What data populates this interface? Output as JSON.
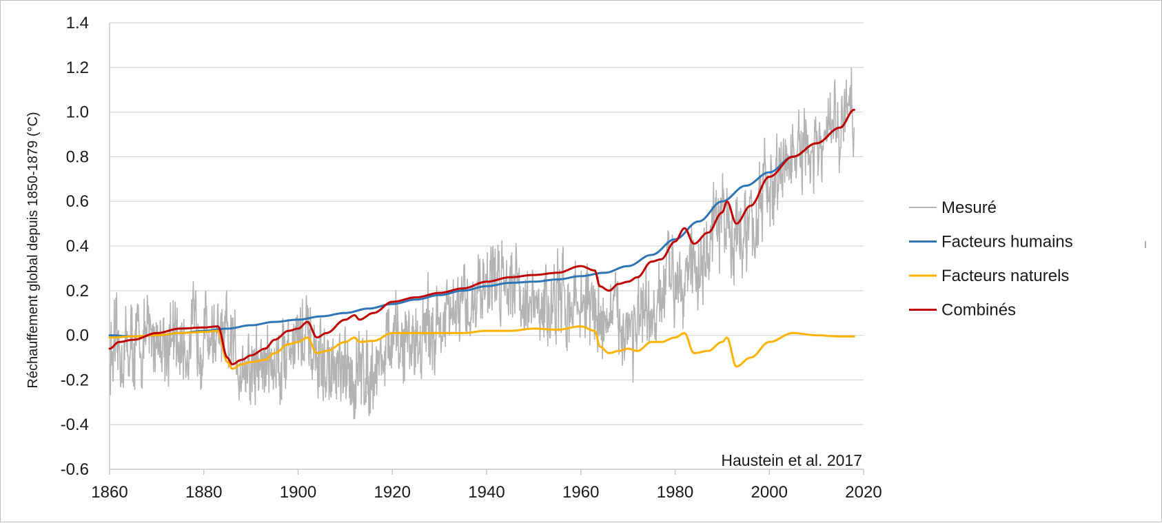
{
  "chart_data": {
    "type": "line",
    "ylabel": "Réchauffement  global depuis 1850-1879 (°C)",
    "xlabel": "",
    "annotation": "Haustein et al. 2017",
    "xlim": [
      1860,
      2020
    ],
    "ylim": [
      -0.6,
      1.4
    ],
    "x_ticks": [
      1860,
      1880,
      1900,
      1920,
      1940,
      1960,
      1980,
      2000,
      2020
    ],
    "y_ticks": [
      -0.6,
      -0.4,
      -0.2,
      0.0,
      0.2,
      0.4,
      0.6,
      0.8,
      1.0,
      1.2,
      1.4
    ],
    "y_tick_labels": [
      "-0.6",
      "-0.4",
      "-0.2",
      "0.0",
      "0.2",
      "0.4",
      "0.6",
      "0.8",
      "1.0",
      "1.2",
      "1.4"
    ],
    "x_tick_labels": [
      "1860",
      "1880",
      "1900",
      "1920",
      "1940",
      "1960",
      "1980",
      "2000",
      "2020"
    ],
    "grid": "horizontal",
    "legend_position": "right",
    "series": [
      {
        "name": "Mesuré",
        "color": "#b3b3b3",
        "kind": "noisy",
        "x": [
          1860,
          1865,
          1870,
          1875,
          1880,
          1885,
          1890,
          1895,
          1900,
          1905,
          1910,
          1915,
          1920,
          1925,
          1930,
          1935,
          1940,
          1945,
          1950,
          1955,
          1960,
          1965,
          1970,
          1975,
          1980,
          1985,
          1990,
          1995,
          2000,
          2005,
          2010,
          2015,
          2018
        ],
        "y": [
          -0.1,
          -0.05,
          0.0,
          -0.05,
          0.02,
          -0.05,
          -0.15,
          -0.12,
          0.0,
          -0.15,
          -0.2,
          -0.15,
          -0.05,
          -0.02,
          0.05,
          0.1,
          0.25,
          0.28,
          0.1,
          0.15,
          0.15,
          0.08,
          0.05,
          0.05,
          0.3,
          0.3,
          0.5,
          0.45,
          0.65,
          0.8,
          0.8,
          0.95,
          1.0
        ]
      },
      {
        "name": "Facteurs humains",
        "color": "#2e75b6",
        "kind": "smooth",
        "x": [
          1860,
          1865,
          1870,
          1875,
          1880,
          1885,
          1890,
          1895,
          1900,
          1905,
          1910,
          1915,
          1920,
          1925,
          1930,
          1935,
          1940,
          1945,
          1950,
          1955,
          1960,
          1965,
          1970,
          1975,
          1980,
          1985,
          1990,
          1995,
          2000,
          2005,
          2010,
          2015,
          2018
        ],
        "y": [
          0.0,
          -0.005,
          0.0,
          0.01,
          0.02,
          0.03,
          0.045,
          0.06,
          0.07,
          0.085,
          0.1,
          0.12,
          0.14,
          0.16,
          0.18,
          0.2,
          0.22,
          0.235,
          0.24,
          0.25,
          0.265,
          0.28,
          0.31,
          0.36,
          0.43,
          0.51,
          0.6,
          0.67,
          0.73,
          0.8,
          0.86,
          0.93,
          1.01
        ]
      },
      {
        "name": "Facteurs naturels",
        "color": "#ffb300",
        "kind": "smooth",
        "x": [
          1860,
          1865,
          1870,
          1875,
          1880,
          1883,
          1885,
          1886,
          1888,
          1890,
          1893,
          1895,
          1898,
          1900,
          1902,
          1904,
          1906,
          1910,
          1912,
          1913,
          1916,
          1920,
          1925,
          1930,
          1935,
          1940,
          1945,
          1950,
          1955,
          1960,
          1963,
          1964,
          1966,
          1968,
          1970,
          1972,
          1975,
          1977,
          1980,
          1982,
          1984,
          1987,
          1990,
          1991,
          1993,
          1996,
          2000,
          2005,
          2010,
          2015,
          2018
        ],
        "y": [
          -0.01,
          -0.005,
          0.0,
          0.01,
          0.015,
          0.02,
          -0.12,
          -0.15,
          -0.13,
          -0.12,
          -0.11,
          -0.08,
          -0.04,
          -0.03,
          -0.01,
          -0.08,
          -0.07,
          -0.03,
          -0.01,
          -0.03,
          -0.025,
          0.01,
          0.01,
          0.01,
          0.01,
          0.02,
          0.02,
          0.03,
          0.025,
          0.04,
          0.02,
          -0.05,
          -0.08,
          -0.07,
          -0.06,
          -0.07,
          -0.03,
          -0.03,
          -0.01,
          0.01,
          -0.08,
          -0.07,
          -0.03,
          -0.01,
          -0.14,
          -0.1,
          -0.03,
          0.01,
          0.0,
          -0.005,
          -0.005
        ]
      },
      {
        "name": "Combinés",
        "color": "#c00000",
        "kind": "smooth",
        "x": [
          1860,
          1862,
          1865,
          1870,
          1875,
          1880,
          1883,
          1885,
          1886,
          1888,
          1890,
          1893,
          1895,
          1898,
          1900,
          1902,
          1904,
          1906,
          1910,
          1912,
          1913,
          1916,
          1920,
          1925,
          1930,
          1935,
          1940,
          1945,
          1950,
          1955,
          1960,
          1963,
          1964,
          1966,
          1968,
          1970,
          1972,
          1975,
          1977,
          1980,
          1982,
          1984,
          1987,
          1990,
          1991,
          1993,
          1996,
          2000,
          2005,
          2010,
          2015,
          2018
        ],
        "y": [
          -0.06,
          -0.03,
          -0.02,
          0.01,
          0.03,
          0.035,
          0.04,
          -0.1,
          -0.13,
          -0.11,
          -0.09,
          -0.06,
          -0.02,
          0.02,
          0.03,
          0.06,
          -0.01,
          0.01,
          0.07,
          0.09,
          0.07,
          0.1,
          0.15,
          0.17,
          0.19,
          0.21,
          0.24,
          0.26,
          0.27,
          0.28,
          0.31,
          0.29,
          0.22,
          0.2,
          0.23,
          0.24,
          0.26,
          0.33,
          0.34,
          0.42,
          0.48,
          0.41,
          0.46,
          0.55,
          0.6,
          0.5,
          0.58,
          0.71,
          0.8,
          0.86,
          0.93,
          1.01
        ]
      }
    ]
  }
}
